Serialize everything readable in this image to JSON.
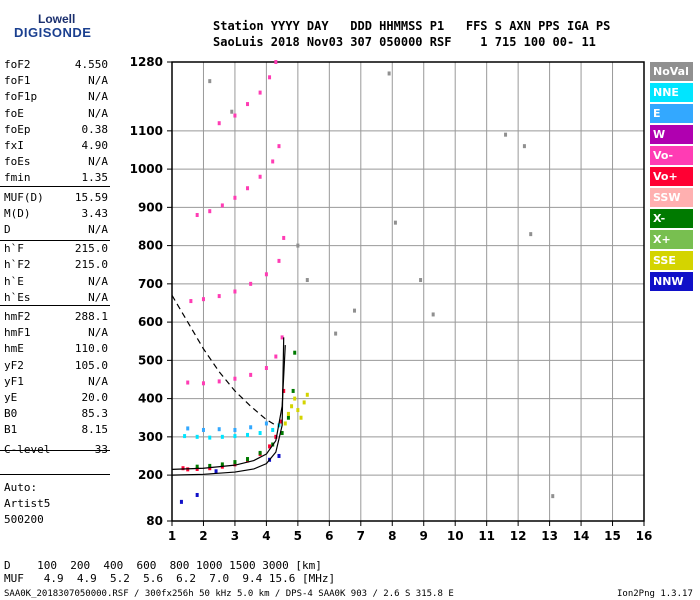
{
  "logo": {
    "line1": "Lowell",
    "line2": "DIGISONDE"
  },
  "header": {
    "line1": "Station YYYY DAY   DDD HHMMSS P1   FFS S AXN PPS IGA PS",
    "line2": "SaoLuis 2018 Nov03 307 050000 RSF    1 715 100 00- 11"
  },
  "params": [
    {
      "label": "foF2",
      "value": "4.550"
    },
    {
      "label": "foF1",
      "value": "N/A"
    },
    {
      "label": "foF1p",
      "value": "N/A"
    },
    {
      "label": "foE",
      "value": "N/A"
    },
    {
      "label": "foEp",
      "value": "0.38"
    },
    {
      "label": "fxI",
      "value": "4.90"
    },
    {
      "label": "foEs",
      "value": "N/A"
    },
    {
      "label": "fmin",
      "value": "1.35"
    },
    {
      "label": "MUF(D)",
      "value": "15.59"
    },
    {
      "label": "M(D)",
      "value": "3.43"
    },
    {
      "label": "D",
      "value": "N/A"
    },
    {
      "label": "h`F",
      "value": "215.0"
    },
    {
      "label": "h`F2",
      "value": "215.0"
    },
    {
      "label": "h`E",
      "value": "N/A"
    },
    {
      "label": "h`Es",
      "value": "N/A"
    },
    {
      "label": "hmF2",
      "value": "288.1"
    },
    {
      "label": "hmF1",
      "value": "N/A"
    },
    {
      "label": "hmE",
      "value": "110.0"
    },
    {
      "label": "yF2",
      "value": "105.0"
    },
    {
      "label": "yF1",
      "value": "N/A"
    },
    {
      "label": "yE",
      "value": "20.0"
    },
    {
      "label": "B0",
      "value": "85.3"
    },
    {
      "label": "B1",
      "value": "8.15"
    },
    {
      "label": "C-level",
      "value": "33"
    }
  ],
  "autoscale": {
    "line1": "Auto:",
    "line2": "Artist5",
    "line3": "500200"
  },
  "legend": [
    {
      "label": "NoVal",
      "color": "#909090"
    },
    {
      "label": "NNE",
      "color": "#00e5ff"
    },
    {
      "label": "E",
      "color": "#33a8ff"
    },
    {
      "label": "W",
      "color": "#b000b0"
    },
    {
      "label": "Vo-",
      "color": "#ff3cb4"
    },
    {
      "label": "Vo+",
      "color": "#ff0033"
    },
    {
      "label": "SSW",
      "color": "#ffb0b0"
    },
    {
      "label": "X-",
      "color": "#007a00"
    },
    {
      "label": "X+",
      "color": "#78bf50"
    },
    {
      "label": "SSE",
      "color": "#d4d400"
    },
    {
      "label": "NNW",
      "color": "#1010c8"
    }
  ],
  "bottom": {
    "d_row": "D    100  200  400  600  800 1000 1500 3000 [km]",
    "muf_row": "MUF   4.9  4.9  5.2  5.6  6.2  7.0  9.4 15.6 [MHz]",
    "footer_left": "SAA0K_2018307050000.RSF / 300fx256h 50 kHz 5.0 km / DPS-4 SAA0K 903 / 2.6 S 315.8 E",
    "footer_right": "Ion2Png 1.3.17"
  },
  "chart_data": {
    "type": "scatter",
    "xlabel": "",
    "ylabel": "",
    "x_ticks": [
      "1",
      "2",
      "3",
      "4",
      "5",
      "6",
      "7",
      "8",
      "9",
      "10",
      "11",
      "12",
      "13",
      "14",
      "15",
      "16"
    ],
    "y_ticks": [
      "80",
      "200",
      "300",
      "400",
      "500",
      "600",
      "700",
      "800",
      "900",
      "1000",
      "1100",
      "1280"
    ],
    "xlim": [
      1,
      16
    ],
    "ylim": [
      80,
      1280
    ],
    "grid": true,
    "series": [
      {
        "name": "Vo+",
        "x": [
          1.35,
          1.5,
          1.8,
          2.2,
          2.6,
          3.0,
          3.4,
          3.8,
          4.1,
          4.3,
          4.45,
          4.55
        ],
        "y": [
          218,
          215,
          216,
          218,
          222,
          228,
          238,
          255,
          275,
          300,
          340,
          420
        ]
      },
      {
        "name": "X-",
        "x": [
          1.8,
          2.2,
          2.6,
          3.0,
          3.4,
          3.8,
          4.2,
          4.5,
          4.7,
          4.85,
          4.9
        ],
        "y": [
          222,
          224,
          228,
          234,
          242,
          258,
          280,
          310,
          350,
          420,
          520
        ]
      },
      {
        "name": "NNE",
        "x": [
          1.4,
          1.8,
          2.2,
          2.6,
          3.0,
          3.4,
          3.8,
          4.2,
          4.4
        ],
        "y": [
          302,
          300,
          298,
          300,
          302,
          305,
          310,
          318,
          330
        ]
      },
      {
        "name": "E",
        "x": [
          1.5,
          2.0,
          2.5,
          3.0,
          3.5,
          4.0
        ],
        "y": [
          322,
          318,
          320,
          318,
          325,
          335
        ]
      },
      {
        "name": "SSE",
        "x": [
          4.6,
          4.7,
          4.8,
          4.9,
          5.0,
          5.1,
          5.2,
          5.3
        ],
        "y": [
          335,
          360,
          380,
          400,
          370,
          350,
          390,
          410
        ]
      },
      {
        "name": "Vo- (2nd)",
        "x": [
          1.5,
          2.0,
          2.5,
          3.0,
          3.5,
          4.0,
          4.3,
          4.5
        ],
        "y": [
          442,
          440,
          445,
          452,
          462,
          480,
          510,
          560
        ]
      },
      {
        "name": "Vo- (3rd)",
        "x": [
          1.6,
          2.0,
          2.5,
          3.0,
          3.5,
          4.0,
          4.4,
          4.55
        ],
        "y": [
          655,
          660,
          668,
          680,
          700,
          725,
          760,
          820
        ]
      },
      {
        "name": "Vo- (4th)",
        "x": [
          1.8,
          2.2,
          2.6,
          3.0,
          3.4,
          3.8,
          4.2,
          4.4
        ],
        "y": [
          880,
          890,
          905,
          925,
          950,
          980,
          1020,
          1060
        ]
      },
      {
        "name": "Vo- (5th)",
        "x": [
          2.5,
          3.0,
          3.4,
          3.8,
          4.1,
          4.3
        ],
        "y": [
          1120,
          1140,
          1170,
          1200,
          1240,
          1280
        ]
      },
      {
        "name": "NNW",
        "x": [
          1.3,
          1.8,
          2.4,
          4.1,
          4.4
        ],
        "y": [
          130,
          148,
          210,
          240,
          250
        ]
      },
      {
        "name": "NoVal",
        "x": [
          2.2,
          2.9,
          5.0,
          5.3,
          6.2,
          6.8,
          7.9,
          8.1,
          8.9,
          9.3,
          11.6,
          12.2,
          12.4,
          13.1
        ],
        "y": [
          1230,
          1150,
          800,
          710,
          570,
          630,
          1250,
          860,
          710,
          620,
          1090,
          1060,
          830,
          145
        ]
      }
    ],
    "profile_curves": [
      {
        "name": "true-height profile",
        "x": [
          1.0,
          2.0,
          3.0,
          3.6,
          4.0,
          4.3,
          4.5,
          4.55
        ],
        "y": [
          200,
          202,
          208,
          216,
          230,
          260,
          330,
          560
        ]
      },
      {
        "name": "model profile",
        "x": [
          1.0,
          2.0,
          3.0,
          3.6,
          4.0,
          4.3,
          4.5,
          4.6
        ],
        "y": [
          215,
          218,
          226,
          238,
          255,
          290,
          380,
          540
        ]
      },
      {
        "name": "dashed trace",
        "x": [
          1.0,
          1.5,
          2.0,
          2.5,
          3.0,
          3.5,
          4.0,
          4.3
        ],
        "y": [
          670,
          600,
          530,
          470,
          420,
          380,
          345,
          330
        ]
      }
    ]
  }
}
